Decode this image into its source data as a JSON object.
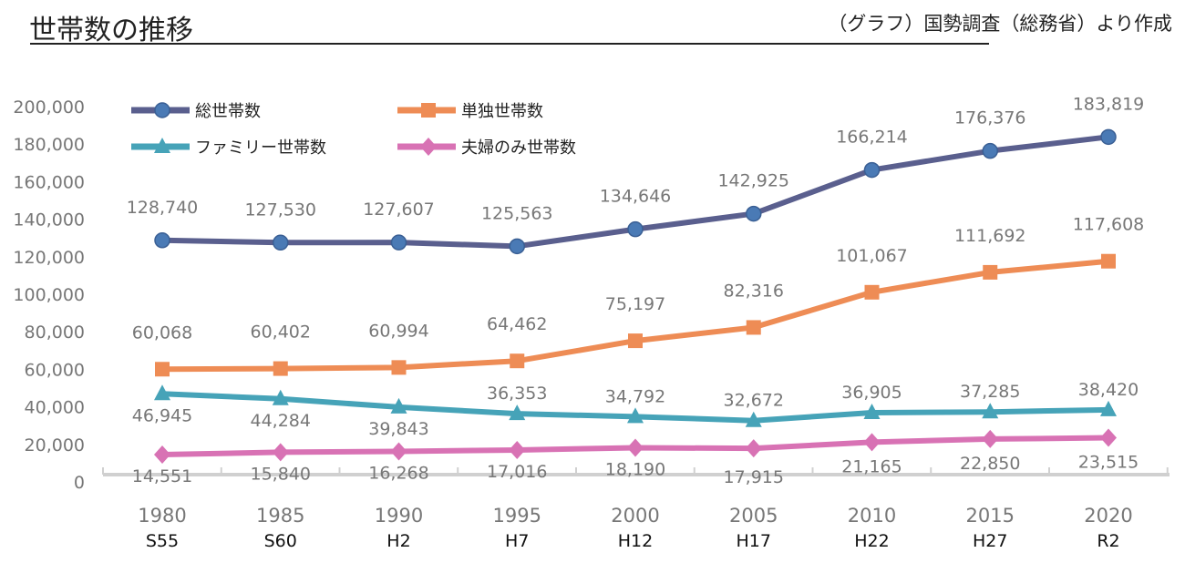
{
  "header": {
    "title": "世帯数の推移",
    "source": "（グラフ）国勢調査（総務省）より作成"
  },
  "chart_data": {
    "type": "line",
    "title": "世帯数の推移",
    "categories": [
      "1980",
      "1985",
      "1990",
      "1995",
      "2000",
      "2005",
      "2010",
      "2015",
      "2020"
    ],
    "era_labels": [
      "S55",
      "S60",
      "H2",
      "H7",
      "H12",
      "H17",
      "H22",
      "H27",
      "R2"
    ],
    "ylim": [
      0,
      200000
    ],
    "yticks": [
      "0",
      "20,000",
      "40,000",
      "60,000",
      "80,000",
      "100,000",
      "120,000",
      "140,000",
      "160,000",
      "180,000",
      "200,000"
    ],
    "grid": false,
    "legend_position": "top-left",
    "series": [
      {
        "name": "総世帯数",
        "color": "#5a5f8e",
        "marker": "circle",
        "marker_color": "#4a7ab5",
        "values": [
          128740,
          127530,
          127607,
          125563,
          134646,
          142925,
          166214,
          176376,
          183819
        ],
        "labels": [
          "128,740",
          "127,530",
          "127,607",
          "125,563",
          "134,646",
          "142,925",
          "166,214",
          "176,376",
          "183,819"
        ]
      },
      {
        "name": "単独世帯数",
        "color": "#ee8c55",
        "marker": "square",
        "marker_color": "#ee8c55",
        "values": [
          60068,
          60402,
          60994,
          64462,
          75197,
          82316,
          101067,
          111692,
          117608
        ],
        "labels": [
          "60,068",
          "60,402",
          "60,994",
          "64,462",
          "75,197",
          "82,316",
          "101,067",
          "111,692",
          "117,608"
        ]
      },
      {
        "name": "ファミリー世帯数",
        "color": "#46a3b8",
        "marker": "triangle",
        "marker_color": "#46a3b8",
        "values": [
          46945,
          44284,
          39843,
          36353,
          34792,
          32672,
          36905,
          37285,
          38420
        ],
        "labels": [
          "46,945",
          "44,284",
          "39,843",
          "36,353",
          "34,792",
          "32,672",
          "36,905",
          "37,285",
          "38,420"
        ]
      },
      {
        "name": "夫婦のみ世帯数",
        "color": "#d872b4",
        "marker": "diamond",
        "marker_color": "#d872b4",
        "values": [
          14551,
          15840,
          16268,
          17016,
          18190,
          17915,
          21165,
          22850,
          23515
        ],
        "labels": [
          "14,551",
          "15,840",
          "16,268",
          "17,016",
          "18,190",
          "17,915",
          "21,165",
          "22,850",
          "23,515"
        ]
      }
    ]
  }
}
